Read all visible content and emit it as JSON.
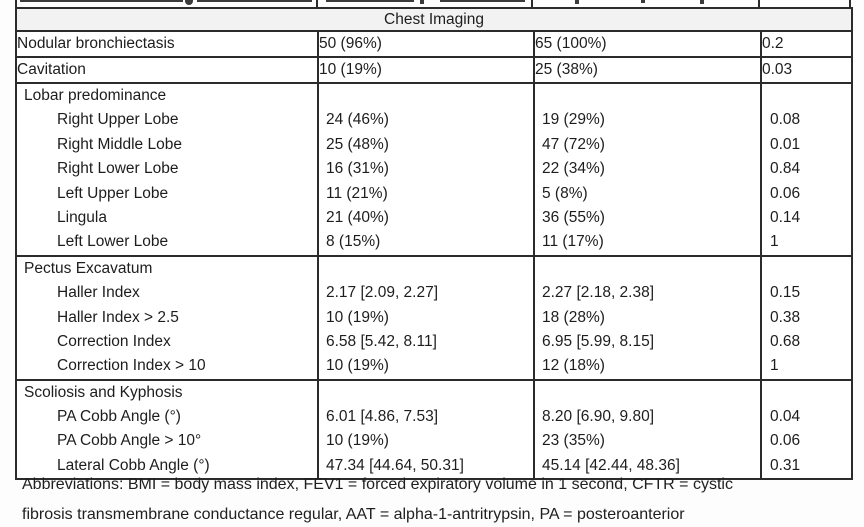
{
  "table": {
    "section_header": "Chest Imaging",
    "rows": [
      {
        "type": "simple",
        "label": "Nodular bronchiectasis",
        "cohort1": "50 (96%)",
        "cohort2": "65 (100%)",
        "p": "0.2"
      },
      {
        "type": "simple",
        "label": "Cavitation",
        "cohort1": "10 (19%)",
        "cohort2": "25 (38%)",
        "p": "0.03"
      },
      {
        "type": "group",
        "label": "Lobar predominance",
        "items": [
          {
            "label": "Right Upper Lobe",
            "cohort1": "24 (46%)",
            "cohort2": "19 (29%)",
            "p": "0.08"
          },
          {
            "label": "Right Middle Lobe",
            "cohort1": "25 (48%)",
            "cohort2": "47 (72%)",
            "p": "0.01"
          },
          {
            "label": "Right Lower Lobe",
            "cohort1": "16 (31%)",
            "cohort2": "22 (34%)",
            "p": "0.84"
          },
          {
            "label": "Left Upper Lobe",
            "cohort1": "11 (21%)",
            "cohort2": "5 (8%)",
            "p": "0.06"
          },
          {
            "label": "Lingula",
            "cohort1": "21 (40%)",
            "cohort2": "36 (55%)",
            "p": "0.14"
          },
          {
            "label": "Left Lower Lobe",
            "cohort1": "8 (15%)",
            "cohort2": "11 (17%)",
            "p": "1"
          }
        ]
      },
      {
        "type": "group",
        "label": "Pectus Excavatum",
        "items": [
          {
            "label": "Haller Index",
            "cohort1": "2.17 [2.09, 2.27]",
            "cohort2": "2.27 [2.18, 2.38]",
            "p": "0.15"
          },
          {
            "label": "Haller Index > 2.5",
            "cohort1": "10 (19%)",
            "cohort2": "18 (28%)",
            "p": "0.38"
          },
          {
            "label": "Correction Index",
            "cohort1": "6.58 [5.42, 8.11]",
            "cohort2": "6.95 [5.99, 8.15]",
            "p": "0.68"
          },
          {
            "label": "Correction Index > 10",
            "cohort1": "10 (19%)",
            "cohort2": "12 (18%)",
            "p": "1"
          }
        ]
      },
      {
        "type": "group",
        "label": "Scoliosis and Kyphosis",
        "items": [
          {
            "label": "PA Cobb Angle (°)",
            "cohort1": "6.01 [4.86, 7.53]",
            "cohort2": "8.20 [6.90, 9.80]",
            "p": "0.04"
          },
          {
            "label": "PA Cobb Angle > 10°",
            "cohort1": "10 (19%)",
            "cohort2": "23 (35%)",
            "p": "0.06"
          },
          {
            "label": "Lateral Cobb Angle (°)",
            "cohort1": "47.34 [44.64, 50.31]",
            "cohort2": "45.14 [42.44, 48.36]",
            "p": "0.31"
          }
        ]
      }
    ]
  },
  "footnote": {
    "line1": "Abbreviations: BMI = body mass index, FEV1 = forced expiratory volume in 1 second, CFTR = cystic",
    "line2": "fibrosis transmembrane conductance regular, AAT = alpha-1-antritrypsin, PA = posteroanterior"
  },
  "colors": {
    "section_header_bg": "#f2f2f2",
    "border": "#2b2b2b",
    "text": "#1d1d1d",
    "page_bg": "#fdfdfd"
  }
}
